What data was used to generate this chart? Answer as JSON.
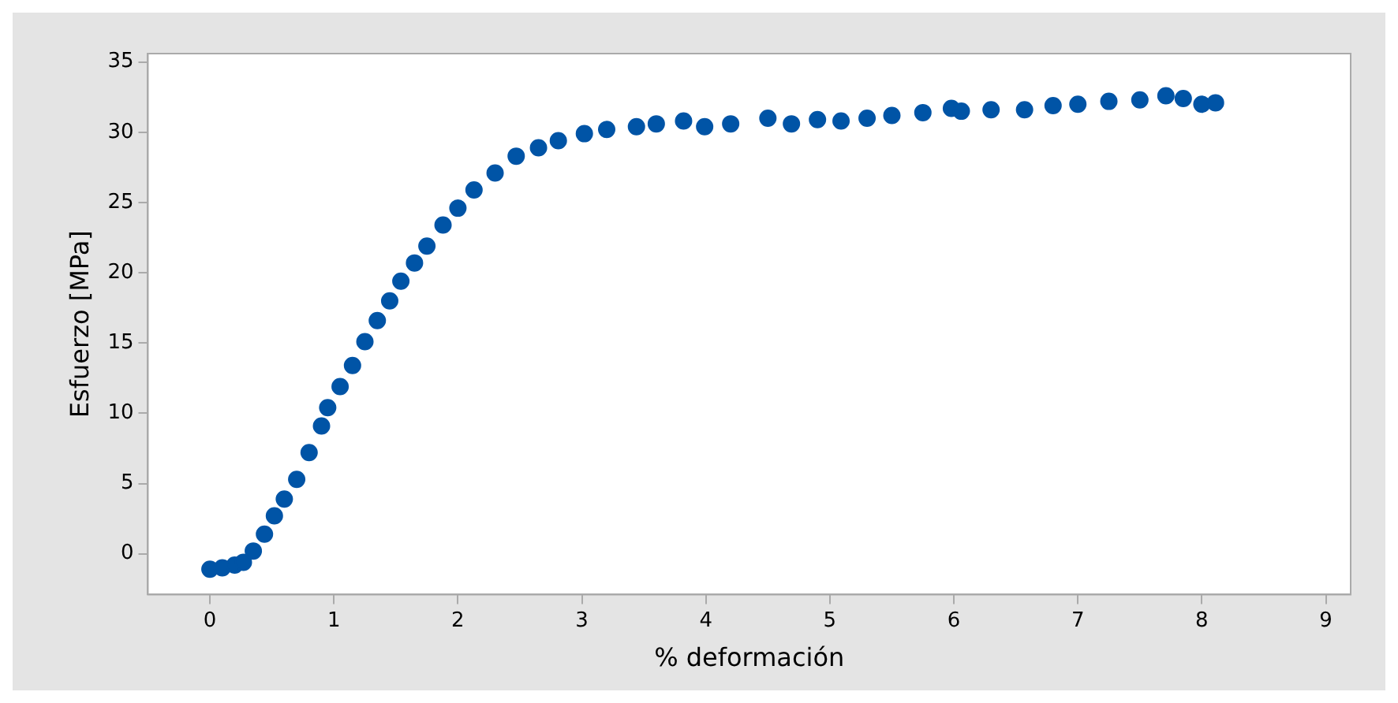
{
  "chart_data": {
    "type": "scatter",
    "xlabel": "% deformación",
    "ylabel": "Esfuerzo [MPa]",
    "marker": "circle",
    "grid": false,
    "legend": false,
    "xlim": [
      -0.5,
      9.2
    ],
    "xticks": [
      0,
      1,
      2,
      3,
      4,
      5,
      6,
      7,
      8,
      9
    ],
    "ylim": [
      -2.9,
      35.6
    ],
    "yticks": [
      0,
      5,
      10,
      15,
      20,
      25,
      30,
      35
    ],
    "series": [
      {
        "color": "#0054a6",
        "x": [
          0,
          0.1,
          0.2,
          0.27,
          0.35,
          0.44,
          0.52,
          0.6,
          0.7,
          0.8,
          0.9,
          0.95,
          1.05,
          1.15,
          1.25,
          1.35,
          1.45,
          1.54,
          1.65,
          1.75,
          1.88,
          2.0,
          2.13,
          2.3,
          2.47,
          2.65,
          2.81,
          3.02,
          3.2,
          3.44,
          3.6,
          3.82,
          3.99,
          4.2,
          4.5,
          4.69,
          4.9,
          5.09,
          5.3,
          5.5,
          5.75,
          5.98,
          6.06,
          6.3,
          6.57,
          6.8,
          7.0,
          7.25,
          7.5,
          7.71,
          7.85,
          8.0,
          8.11
        ],
        "values": [
          -1.1,
          -1.0,
          -0.8,
          -0.6,
          0.2,
          1.4,
          2.7,
          3.9,
          5.3,
          7.2,
          9.1,
          10.4,
          11.9,
          13.4,
          15.1,
          16.6,
          18.0,
          19.4,
          20.7,
          21.9,
          23.4,
          24.6,
          25.9,
          27.1,
          28.3,
          28.9,
          29.4,
          29.9,
          30.2,
          30.4,
          30.6,
          30.8,
          30.4,
          30.6,
          31.0,
          30.6,
          30.9,
          30.8,
          31.0,
          31.2,
          31.4,
          31.7,
          31.5,
          31.6,
          31.6,
          31.9,
          32.0,
          32.2,
          32.3,
          32.6,
          32.4,
          32.0,
          32.1
        ]
      }
    ]
  }
}
